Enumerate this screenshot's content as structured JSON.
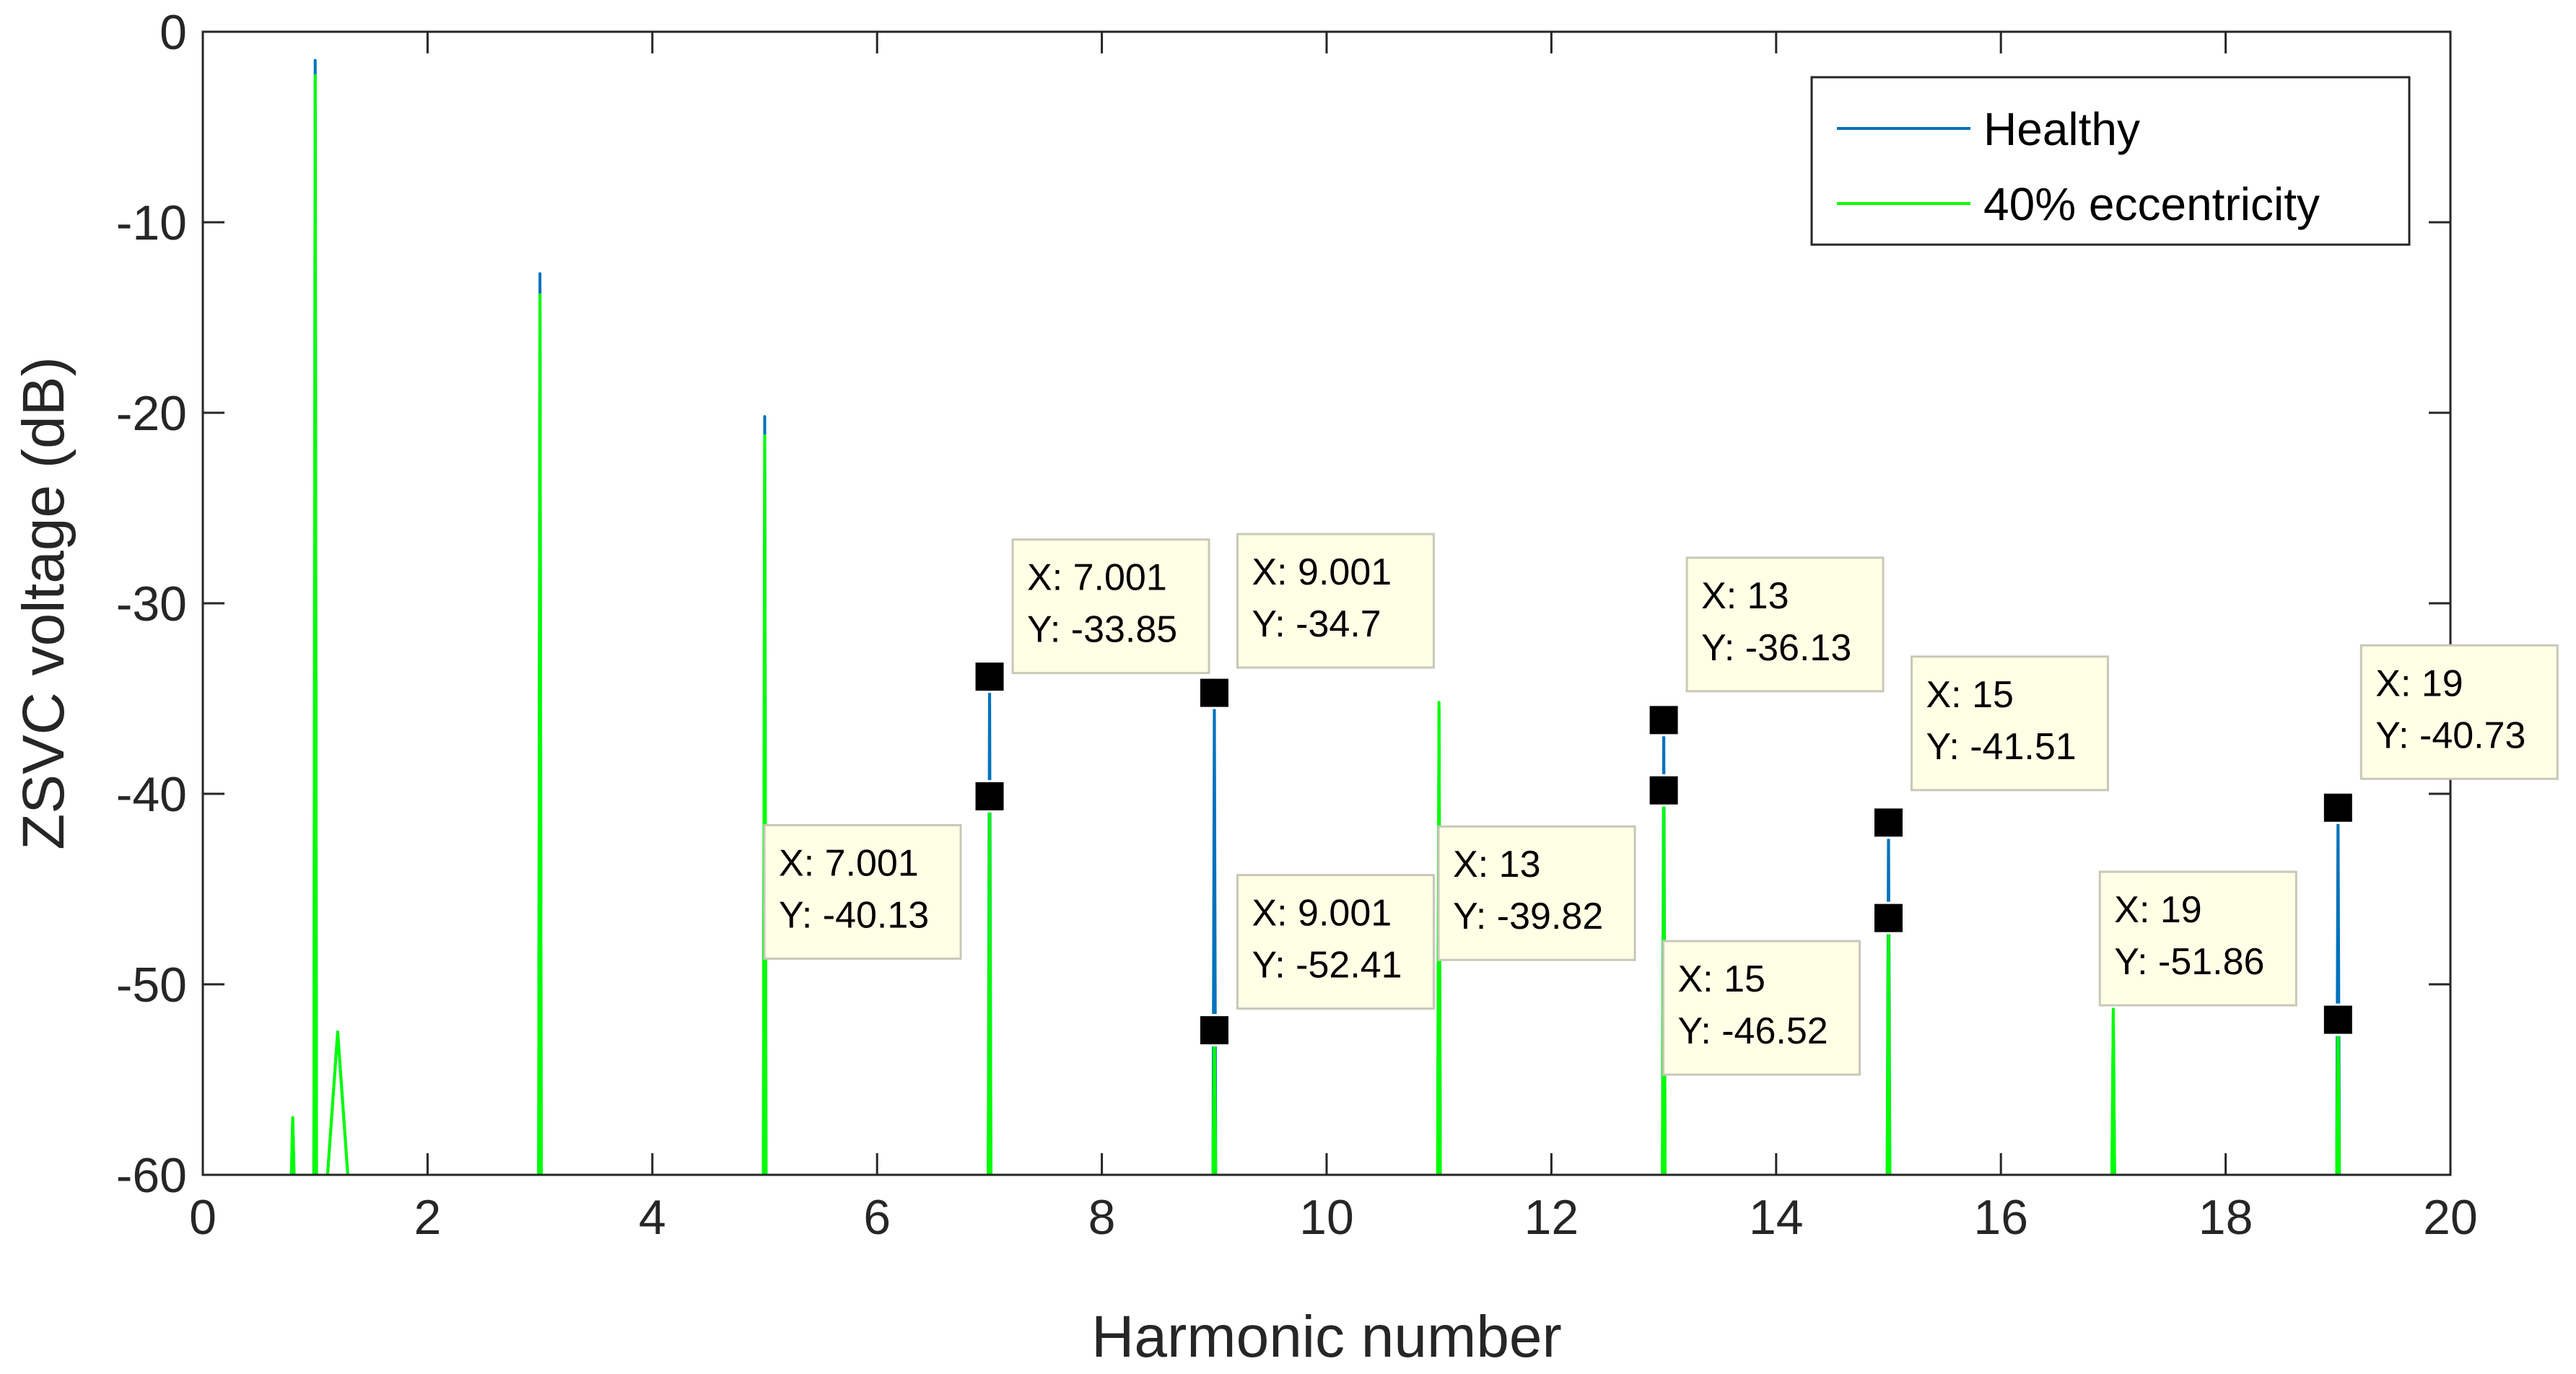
{
  "chart_data": {
    "type": "line",
    "title": "",
    "xlabel": "Harmonic number",
    "ylabel": "ZSVC voltage (dB)",
    "xlim": [
      0,
      20
    ],
    "ylim": [
      -60,
      0
    ],
    "xticks": [
      0,
      2,
      4,
      6,
      8,
      10,
      12,
      14,
      16,
      18,
      20
    ],
    "yticks": [
      0,
      -10,
      -20,
      -30,
      -40,
      -50,
      -60
    ],
    "xtick_labels": [
      "0",
      "2",
      "4",
      "6",
      "8",
      "10",
      "12",
      "14",
      "16",
      "18",
      "20"
    ],
    "ytick_labels": [
      "0",
      "-10",
      "-20",
      "-30",
      "-40",
      "-50",
      "-60"
    ],
    "legend_position": "top-right",
    "series": [
      {
        "name": "Healthy",
        "color": "#0072BD",
        "peaks": [
          {
            "x": 0.8,
            "y": -57.0
          },
          {
            "x": 1.0,
            "y": -1.5
          },
          {
            "x": 1.2,
            "y": -52.5
          },
          {
            "x": 3.0,
            "y": -12.7
          },
          {
            "x": 5.0,
            "y": -20.2
          },
          {
            "x": 7.001,
            "y": -33.85
          },
          {
            "x": 9.001,
            "y": -34.7
          },
          {
            "x": 11.0,
            "y": -35.5
          },
          {
            "x": 13.0,
            "y": -36.13
          },
          {
            "x": 15.0,
            "y": -41.51
          },
          {
            "x": 17.0,
            "y": -51.5
          },
          {
            "x": 19.0,
            "y": -40.73
          }
        ]
      },
      {
        "name": "40% eccentricity",
        "color": "#00FF00",
        "peaks": [
          {
            "x": 0.8,
            "y": -57.0
          },
          {
            "x": 1.0,
            "y": -2.3
          },
          {
            "x": 1.2,
            "y": -52.5
          },
          {
            "x": 3.0,
            "y": -13.8
          },
          {
            "x": 5.0,
            "y": -21.2
          },
          {
            "x": 7.001,
            "y": -40.13
          },
          {
            "x": 9.001,
            "y": -52.41
          },
          {
            "x": 11.0,
            "y": -35.2
          },
          {
            "x": 13.0,
            "y": -39.82
          },
          {
            "x": 15.0,
            "y": -46.52
          },
          {
            "x": 17.0,
            "y": -51.3
          },
          {
            "x": 19.0,
            "y": -51.86
          }
        ]
      }
    ],
    "datatips": [
      {
        "x": 7.001,
        "y": -33.85,
        "x_text": "X: 7.001",
        "y_text": "Y: -33.85"
      },
      {
        "x": 7.001,
        "y": -40.13,
        "x_text": "X: 7.001",
        "y_text": "Y: -40.13"
      },
      {
        "x": 9.001,
        "y": -34.7,
        "x_text": "X: 9.001",
        "y_text": "Y: -34.7"
      },
      {
        "x": 9.001,
        "y": -52.41,
        "x_text": "X: 9.001",
        "y_text": "Y: -52.41"
      },
      {
        "x": 13,
        "y": -36.13,
        "x_text": "X: 13",
        "y_text": "Y: -36.13"
      },
      {
        "x": 13,
        "y": -39.82,
        "x_text": "X: 13",
        "y_text": "Y: -39.82"
      },
      {
        "x": 15,
        "y": -41.51,
        "x_text": "X: 15",
        "y_text": "Y: -41.51"
      },
      {
        "x": 15,
        "y": -46.52,
        "x_text": "X: 15",
        "y_text": "Y: -46.52"
      },
      {
        "x": 19,
        "y": -40.73,
        "x_text": "X: 19",
        "y_text": "Y: -40.73"
      },
      {
        "x": 19,
        "y": -51.86,
        "x_text": "X: 19",
        "y_text": "Y: -51.86"
      }
    ]
  }
}
